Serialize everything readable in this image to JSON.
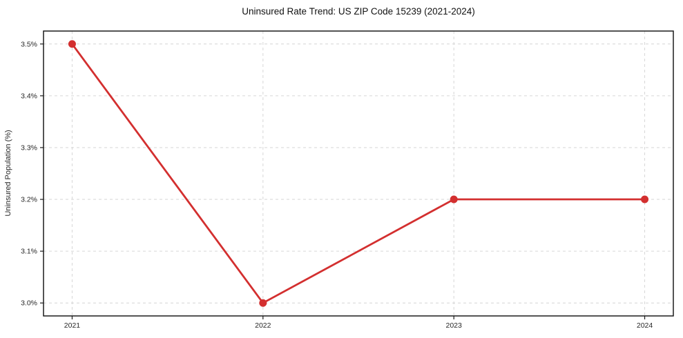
{
  "chart_data": {
    "type": "line",
    "title": "Uninsured Rate Trend: US ZIP Code 15239 (2021-2024)",
    "xlabel": "",
    "ylabel": "Uninsured Population (%)",
    "x": [
      2021,
      2022,
      2023,
      2024
    ],
    "series": [
      {
        "name": "Uninsured rate",
        "values": [
          3.5,
          3.0,
          3.2,
          3.2
        ]
      }
    ],
    "x_tick_labels": [
      "2021",
      "2022",
      "2023",
      "2024"
    ],
    "y_tick_values": [
      3.0,
      3.1,
      3.2,
      3.3,
      3.4,
      3.5
    ],
    "y_tick_labels": [
      "3.0%",
      "3.1%",
      "3.2%",
      "3.3%",
      "3.4%",
      "3.5%"
    ],
    "xlim": [
      2020.85,
      2024.15
    ],
    "ylim": [
      2.975,
      3.525
    ],
    "grid": true,
    "grid_style": "dashed",
    "legend": "none",
    "colors": {
      "line": "#d32f2f",
      "marker": "#d32f2f",
      "grid": "#d6d6d6",
      "spine": "#1a1a1a",
      "tick_text": "#262626",
      "title_text": "#111111",
      "background": "#ffffff"
    }
  }
}
